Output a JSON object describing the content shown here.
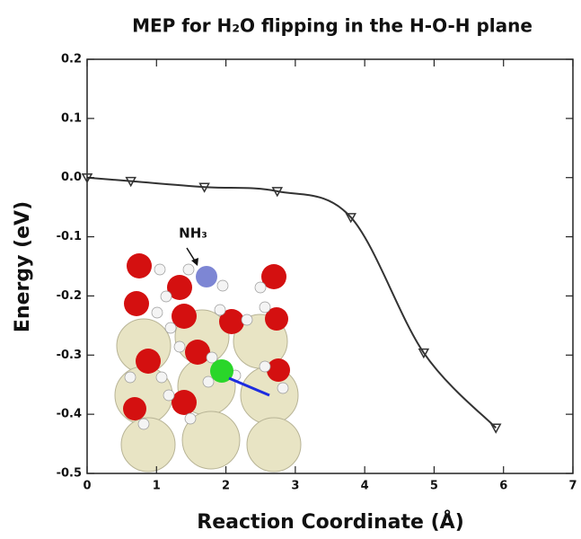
{
  "chart_data": {
    "type": "line",
    "title": "MEP for H₂O flipping in the H-O-H plane",
    "x_label": "Reaction Coordinate (Å)",
    "y_label": "Energy (eV)",
    "annotation": "NH₃",
    "x": [
      0.0,
      0.63,
      1.69,
      2.74,
      3.8,
      4.85,
      5.89
    ],
    "series": [
      {
        "color": "#333333",
        "values": [
          0.0,
          -0.006,
          -0.016,
          -0.023,
          -0.067,
          -0.296,
          -0.423
        ]
      }
    ],
    "xlim": [
      0,
      7
    ],
    "xticks": [
      0,
      1,
      2,
      3,
      4,
      5,
      6,
      7
    ],
    "ylim": [
      -0.5,
      0.2
    ],
    "yticks": [
      0.2,
      0.1,
      {
        "value": 0,
        "label": "0.0"
      },
      -0.1,
      -0.2,
      -0.3,
      -0.4,
      -0.5
    ]
  }
}
